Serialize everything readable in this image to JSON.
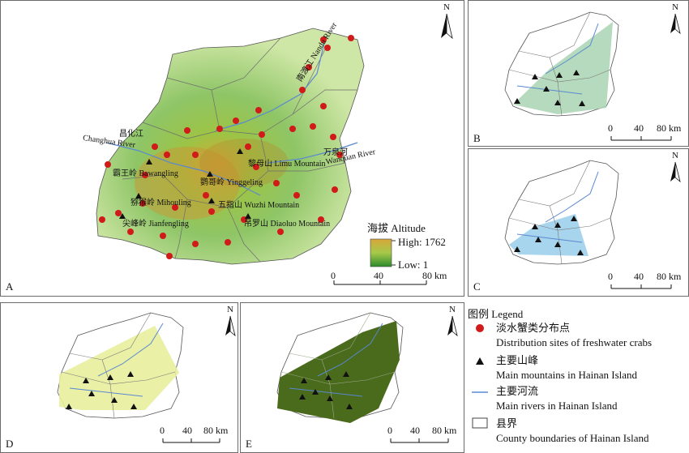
{
  "panels": {
    "A": {
      "label": "A"
    },
    "B": {
      "label": "B"
    },
    "C": {
      "label": "C"
    },
    "D": {
      "label": "D"
    },
    "E": {
      "label": "E"
    }
  },
  "north_label": "N",
  "scale": {
    "zero": "0",
    "mid": "40",
    "end": "80 km"
  },
  "altitude_legend": {
    "title": "海拔 Altitude",
    "high": "High: 1762",
    "low": "Low: 1"
  },
  "place_labels": {
    "nandu_river": "南渡江 Nandu River",
    "changhua_river_cn": "昌化江",
    "changhua_river_en": "Changhua River",
    "wanquan_river_cn": "万泉河",
    "wanquan_river_en": "Wanquan River",
    "limu": "黎母山  Limu Mountain",
    "bawangling": "霸王岭  Bawangling",
    "yinggeling": "鹦哥岭  Yinggeling",
    "mihouling": "猕猴岭  Mihouling",
    "wuzhi": "五指山  Wuzhi Mountain",
    "jianfengling": "尖峰岭  Jianfengling",
    "diaoluo": "吊罗山  Diaoluo Mountain"
  },
  "legend": {
    "title": "图例 Legend",
    "items": [
      {
        "cn": "淡水蟹类分布点",
        "en": "Distribution sites of freshwater crabs",
        "symbol": "red-dot"
      },
      {
        "cn": "主要山峰",
        "en": "Main mountains in Hainan Island",
        "symbol": "triangle"
      },
      {
        "cn": "主要河流",
        "en": "Main rivers in Hainan Island",
        "symbol": "blue-line"
      },
      {
        "cn": "县界",
        "en": "County boundaries of Hainan Island",
        "symbol": "box"
      }
    ]
  },
  "colors": {
    "panel_B_fill": "#a9d3b1",
    "panel_C_fill": "#9fd0ec",
    "panel_D_fill": "#e8ee9c",
    "panel_E_fill": "#4a6a1c",
    "crab_dot": "#d11a1a",
    "river": "#5a88d0",
    "elev_high": "#c9a23a",
    "elev_low": "#2e8b2e"
  }
}
